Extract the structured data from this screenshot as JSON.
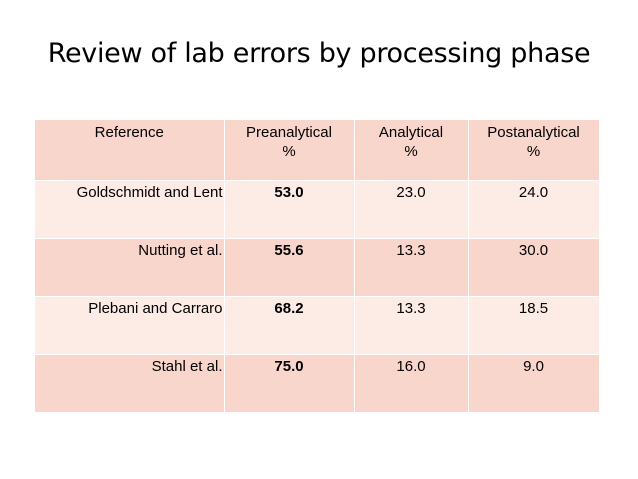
{
  "slide": {
    "title": "Review of lab errors by processing phase"
  },
  "table": {
    "headers": [
      {
        "line1": "Reference",
        "line2": ""
      },
      {
        "line1": "Preanalytical",
        "line2": "%"
      },
      {
        "line1": "Analytical",
        "line2": "%"
      },
      {
        "line1": "Postanalytical",
        "line2": "%"
      }
    ],
    "rows": [
      {
        "reference": "Goldschmidt and Lent",
        "preanalytical": "53.0",
        "analytical": "23.0",
        "postanalytical": "24.0"
      },
      {
        "reference": "Nutting et al.",
        "preanalytical": "55.6",
        "analytical": "13.3",
        "postanalytical": "30.0"
      },
      {
        "reference": "Plebani and Carraro",
        "preanalytical": "68.2",
        "analytical": "13.3",
        "postanalytical": "18.5"
      },
      {
        "reference": "Stahl et al.",
        "preanalytical": "75.0",
        "analytical": "16.0",
        "postanalytical": "9.0"
      }
    ]
  },
  "colors": {
    "header_fill": "#f9d6cb",
    "row_light_fill": "#fdebe5",
    "row_dark_fill": "#f9d6cb"
  }
}
